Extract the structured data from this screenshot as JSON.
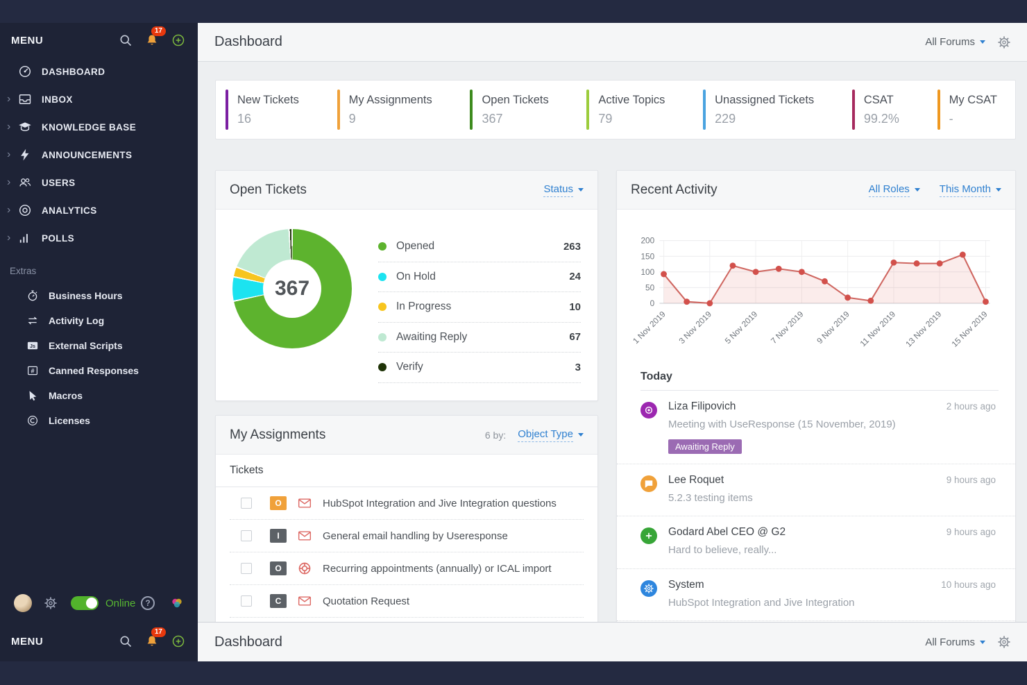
{
  "app": {
    "online_status": "Online"
  },
  "sidebar": {
    "menu_label": "MENU",
    "notification_count": "17",
    "items": [
      {
        "label": "DASHBOARD",
        "icon": "dashboard",
        "expandable": false
      },
      {
        "label": "INBOX",
        "icon": "inbox",
        "expandable": true
      },
      {
        "label": "KNOWLEDGE BASE",
        "icon": "knowledge",
        "expandable": true
      },
      {
        "label": "ANNOUNCEMENTS",
        "icon": "bolt",
        "expandable": true
      },
      {
        "label": "USERS",
        "icon": "users",
        "expandable": true
      },
      {
        "label": "ANALYTICS",
        "icon": "analytics",
        "expandable": true
      },
      {
        "label": "POLLS",
        "icon": "polls",
        "expandable": true
      }
    ],
    "extras_label": "Extras",
    "extras": [
      {
        "label": "Business Hours",
        "icon": "stopwatch"
      },
      {
        "label": "Activity Log",
        "icon": "exchange"
      },
      {
        "label": "External Scripts",
        "icon": "js"
      },
      {
        "label": "Canned Responses",
        "icon": "hash"
      },
      {
        "label": "Macros",
        "icon": "cursor"
      },
      {
        "label": "Licenses",
        "icon": "copyright"
      }
    ]
  },
  "header": {
    "title": "Dashboard",
    "forum_filter": "All Forums"
  },
  "stats": [
    {
      "label": "New Tickets",
      "value": "16",
      "color": "#7b1fa2"
    },
    {
      "label": "My Assignments",
      "value": "9",
      "color": "#f0a13a"
    },
    {
      "label": "Open Tickets",
      "value": "367",
      "color": "#3d8b1e"
    },
    {
      "label": "Active Topics",
      "value": "79",
      "color": "#9ccc3c"
    },
    {
      "label": "Unassigned Tickets",
      "value": "229",
      "color": "#4aa3e0"
    },
    {
      "label": "CSAT",
      "value": "99.2%",
      "color": "#a62a5e"
    },
    {
      "label": "My CSAT",
      "value": "-",
      "color": "#ef9820"
    }
  ],
  "open_tickets": {
    "title": "Open Tickets",
    "filter_label": "Status",
    "total": "367"
  },
  "my_assignments": {
    "title": "My Assignments",
    "sort_prefix": "6 by:",
    "sort_label": "Object Type",
    "section_label": "Tickets",
    "rows": [
      {
        "badge": "O",
        "badge_color": "#f0a13a",
        "icon": "envelope",
        "title": "HubSpot Integration and Jive Integration questions"
      },
      {
        "badge": "I",
        "badge_color": "#5c6166",
        "icon": "envelope",
        "title": "General email handling by Useresponse"
      },
      {
        "badge": "O",
        "badge_color": "#5c6166",
        "icon": "lifebuoy",
        "title": "Recurring appointments (annually) or ICAL import"
      },
      {
        "badge": "C",
        "badge_color": "#5c6166",
        "icon": "envelope",
        "title": "Quotation Request"
      }
    ]
  },
  "recent_activity": {
    "title": "Recent Activity",
    "role_filter": "All Roles",
    "period_filter": "This Month"
  },
  "today": {
    "label": "Today",
    "items": [
      {
        "icon": "target",
        "icon_color": "#9c27b0",
        "name": "Liza Filipovich",
        "time": "2 hours ago",
        "text": "Meeting with UseResponse (15 November, 2019)",
        "badge": "Awaiting Reply",
        "badge_color": "#9b6bb3"
      },
      {
        "icon": "chat",
        "icon_color": "#f0a13a",
        "name": "Lee Roquet",
        "time": "9 hours ago",
        "text": "5.2.3 testing items"
      },
      {
        "icon": "plus",
        "icon_color": "#37a537",
        "name": "Godard Abel CEO @ G2",
        "time": "9 hours ago",
        "text": "Hard to believe, really..."
      },
      {
        "icon": "gear",
        "icon_color": "#2e86de",
        "name": "System",
        "time": "10 hours ago",
        "text": "HubSpot Integration and Jive Integration"
      }
    ]
  },
  "chart_data": [
    {
      "type": "pie",
      "title": "Open Tickets",
      "total_label": "367",
      "segments": [
        {
          "label": "Opened",
          "value": 263,
          "color": "#5db32e"
        },
        {
          "label": "On Hold",
          "value": 24,
          "color": "#1ce3f0"
        },
        {
          "label": "In Progress",
          "value": 10,
          "color": "#f7c51e"
        },
        {
          "label": "Awaiting Reply",
          "value": 67,
          "color": "#bfe9d2"
        },
        {
          "label": "Verify",
          "value": 3,
          "color": "#1f3307"
        }
      ]
    },
    {
      "type": "line",
      "title": "Recent Activity",
      "x": [
        "1 Nov 2019",
        "2 Nov 2019",
        "3 Nov 2019",
        "4 Nov 2019",
        "5 Nov 2019",
        "6 Nov 2019",
        "7 Nov 2019",
        "8 Nov 2019",
        "9 Nov 2019",
        "10 Nov 2019",
        "11 Nov 2019",
        "12 Nov 2019",
        "13 Nov 2019",
        "14 Nov 2019",
        "15 Nov 2019"
      ],
      "x_tick_labels": [
        "1 Nov 2019",
        "3 Nov 2019",
        "5 Nov 2019",
        "7 Nov 2019",
        "9 Nov 2019",
        "11 Nov 2019",
        "13 Nov 2019",
        "15 Nov 2019"
      ],
      "values": [
        93,
        5,
        0,
        120,
        100,
        110,
        100,
        70,
        18,
        8,
        130,
        127,
        127,
        155,
        5
      ],
      "ylim": [
        0,
        200
      ],
      "yticks": [
        0,
        50,
        100,
        150,
        200
      ],
      "grid": true,
      "line_color": "#cf6660",
      "point_color": "#d2504b",
      "fill_color": "rgba(221,106,101,0.13)"
    }
  ]
}
